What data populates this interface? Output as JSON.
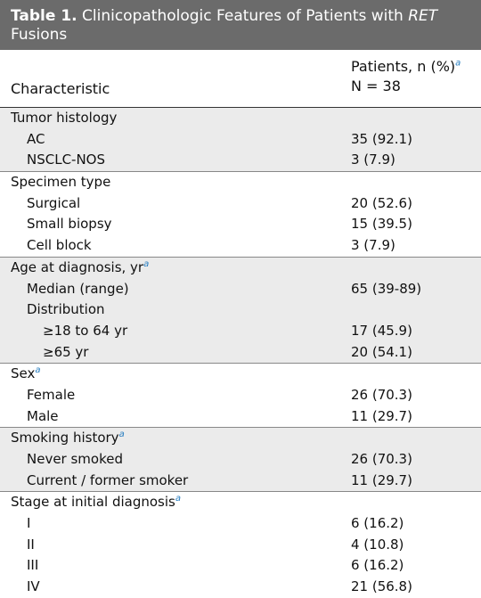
{
  "table": {
    "title_label": "Table 1.",
    "title_text": " Clinicopathologic Features of Patients with ",
    "title_italic": "RET",
    "title_tail": " Fusions",
    "header": {
      "characteristic": "Characteristic",
      "patients": "Patients, n (%)",
      "patients_note": "a",
      "n_total": "N = 38"
    },
    "groups": [
      {
        "label": "Tumor histology",
        "note": "",
        "rows": [
          {
            "label": "AC",
            "value": "35 (92.1)"
          },
          {
            "label": "NSCLC-NOS",
            "value": "3 (7.9)"
          }
        ]
      },
      {
        "label": "Specimen type",
        "note": "",
        "rows": [
          {
            "label": "Surgical",
            "value": "20 (52.6)"
          },
          {
            "label": "Small biopsy",
            "value": "15 (39.5)"
          },
          {
            "label": "Cell block",
            "value": "3 (7.9)"
          }
        ]
      },
      {
        "label": "Age at diagnosis, yr",
        "note": "a",
        "rows": [
          {
            "label": "Median (range)",
            "value": "65 (39-89)"
          },
          {
            "label": "Distribution",
            "value": ""
          },
          {
            "label": "≥18 to 64 yr",
            "value": "17 (45.9)",
            "sub": true
          },
          {
            "label": "≥65 yr",
            "value": "20 (54.1)",
            "sub": true
          }
        ]
      },
      {
        "label": "Sex",
        "note": "a",
        "rows": [
          {
            "label": "Female",
            "value": "26 (70.3)"
          },
          {
            "label": "Male",
            "value": "11 (29.7)"
          }
        ]
      },
      {
        "label": "Smoking history",
        "note": "a",
        "rows": [
          {
            "label": "Never smoked",
            "value": "26 (70.3)"
          },
          {
            "label": "Current / former smoker",
            "value": "11 (29.7)"
          }
        ]
      },
      {
        "label": "Stage at initial diagnosis",
        "note": "a",
        "rows": [
          {
            "label": "I",
            "value": "6 (16.2)"
          },
          {
            "label": "II",
            "value": "4 (10.8)"
          },
          {
            "label": "III",
            "value": "6 (16.2)"
          },
          {
            "label": "IV",
            "value": "21 (56.8)"
          }
        ]
      }
    ]
  }
}
